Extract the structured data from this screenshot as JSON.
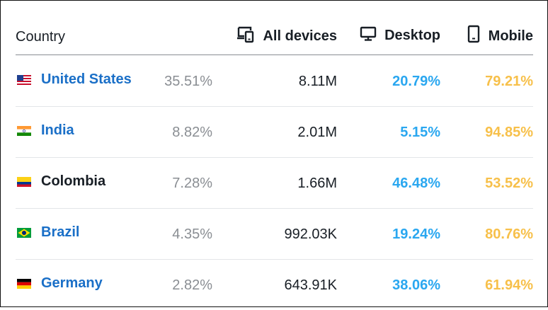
{
  "header": {
    "country": "Country",
    "all_devices": "All devices",
    "desktop": "Desktop",
    "mobile": "Mobile",
    "all_devices_icon": "devices-icon",
    "desktop_icon": "monitor-icon",
    "mobile_icon": "phone-icon"
  },
  "colors": {
    "link": "#1a6fc7",
    "desktop": "#2aa7f0",
    "mobile": "#f7c04a",
    "muted": "#8a8e93"
  },
  "rows": [
    {
      "country": "United States",
      "flag": "us-flag-icon",
      "share": "35.51%",
      "visits": "8.11M",
      "desktop": "20.79%",
      "mobile": "79.21%",
      "is_link": true
    },
    {
      "country": "India",
      "flag": "india-flag-icon",
      "share": "8.82%",
      "visits": "2.01M",
      "desktop": "5.15%",
      "mobile": "94.85%",
      "is_link": true
    },
    {
      "country": "Colombia",
      "flag": "colombia-flag-icon",
      "share": "7.28%",
      "visits": "1.66M",
      "desktop": "46.48%",
      "mobile": "53.52%",
      "is_link": false
    },
    {
      "country": "Brazil",
      "flag": "brazil-flag-icon",
      "share": "4.35%",
      "visits": "992.03K",
      "desktop": "19.24%",
      "mobile": "80.76%",
      "is_link": true
    },
    {
      "country": "Germany",
      "flag": "germany-flag-icon",
      "share": "2.82%",
      "visits": "643.91K",
      "desktop": "38.06%",
      "mobile": "61.94%",
      "is_link": true
    }
  ]
}
